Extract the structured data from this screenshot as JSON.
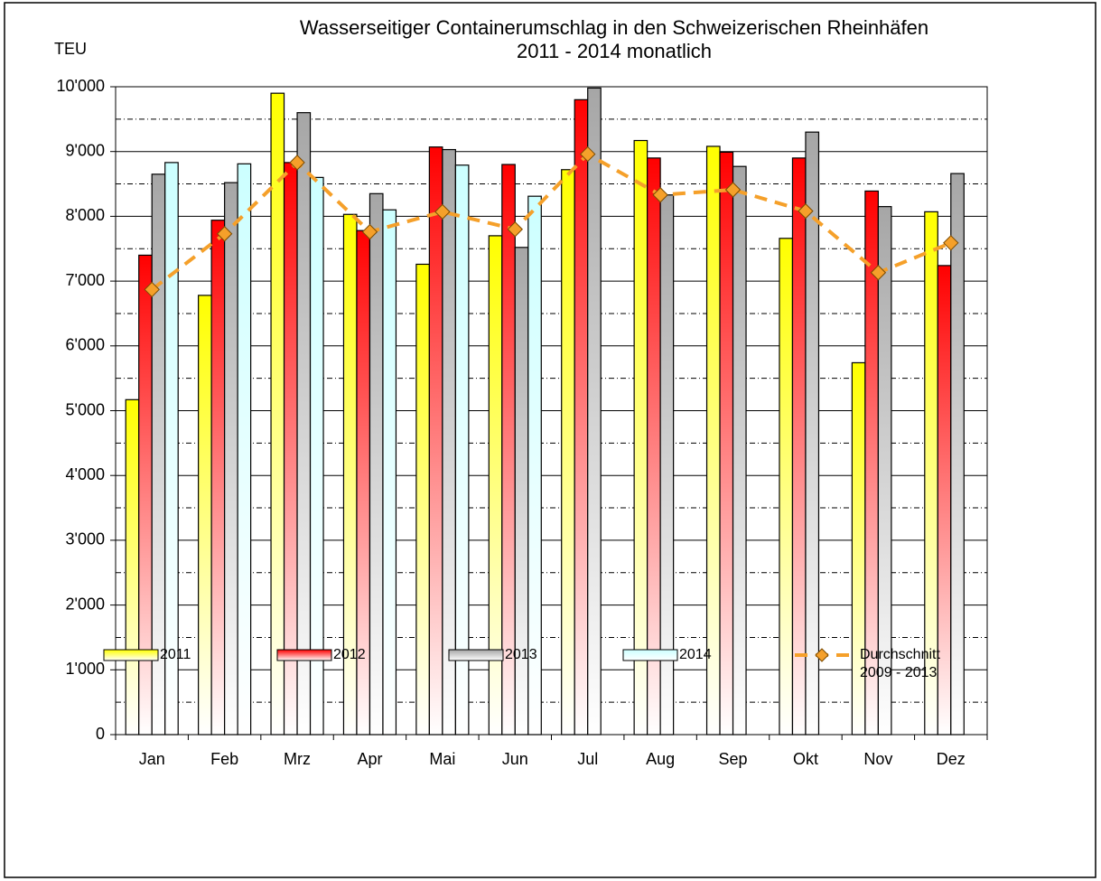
{
  "chart_data": {
    "type": "bar",
    "title": "Wasserseitiger Containerumschlag in den Schweizerischen Rheinhäfen",
    "subtitle": "2011  - 2014 monatlich",
    "y_label": "TEU",
    "categories": [
      "Jan",
      "Feb",
      "Mrz",
      "Apr",
      "Mai",
      "Jun",
      "Jul",
      "Aug",
      "Sep",
      "Okt",
      "Nov",
      "Dez"
    ],
    "series": [
      {
        "name": "2011",
        "type": "bar",
        "color": "#ffff00",
        "values": [
          5170,
          6780,
          9900,
          8030,
          7260,
          7700,
          8720,
          9170,
          9080,
          7660,
          5740,
          8070
        ]
      },
      {
        "name": "2012",
        "type": "bar",
        "color": "#ff0000",
        "values": [
          7400,
          7940,
          8830,
          7780,
          9070,
          8800,
          9800,
          8900,
          8990,
          8900,
          8390,
          7240
        ]
      },
      {
        "name": "2013",
        "type": "bar",
        "color": "#a6a6a6",
        "values": [
          8650,
          8520,
          9600,
          8350,
          9030,
          7520,
          9980,
          8330,
          8770,
          9300,
          8150,
          8660
        ]
      },
      {
        "name": "2014",
        "type": "bar",
        "color": "#ccffff",
        "values": [
          8830,
          8810,
          8600,
          8100,
          8790,
          8310,
          null,
          null,
          null,
          null,
          null,
          null
        ]
      },
      {
        "name": "Durchschnitt 2009 - 2013",
        "type": "line",
        "color": "#f5a02a",
        "values": [
          6870,
          7730,
          8830,
          7760,
          8070,
          7800,
          8960,
          8330,
          8410,
          8080,
          7130,
          7590
        ]
      }
    ],
    "ylim": [
      0,
      10000
    ],
    "yticks": [
      0,
      {
        "value": 1000,
        "label": "1'000"
      },
      {
        "value": 2000,
        "label": "2'000"
      },
      {
        "value": 3000,
        "label": "3'000"
      },
      {
        "value": 4000,
        "label": "4'000"
      },
      {
        "value": 5000,
        "label": "5'000"
      },
      {
        "value": 6000,
        "label": "6'000"
      },
      {
        "value": 7000,
        "label": "7'000"
      },
      {
        "value": 8000,
        "label": "8'000"
      },
      {
        "value": 9000,
        "label": "9'000"
      },
      {
        "value": 10000,
        "label": "10'000"
      }
    ],
    "yminorticks": [
      500,
      1500,
      2500,
      3500,
      4500,
      5500,
      6500,
      7500,
      8500,
      9500
    ],
    "grid": true,
    "legend": "bottom"
  }
}
